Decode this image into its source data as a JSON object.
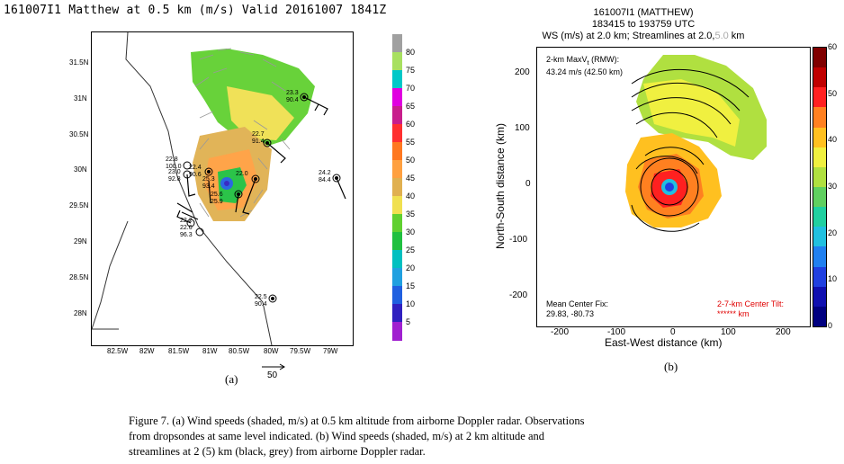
{
  "panel_a": {
    "title": "161007I1 Matthew at 0.5 km (m/s) Valid 20161007 1841Z",
    "label": "(a)",
    "ref_vector": "50",
    "xticks": [
      "82.5W",
      "82W",
      "81.5W",
      "81W",
      "80.5W",
      "80W",
      "79.5W",
      "79W"
    ],
    "yticks": [
      "31.5N",
      "31N",
      "30.5N",
      "30N",
      "29.5N",
      "29N",
      "28.5N",
      "28N"
    ],
    "colorbar": {
      "levels": [
        "80",
        "75",
        "70",
        "65",
        "60",
        "55",
        "50",
        "45",
        "40",
        "35",
        "30",
        "25",
        "20",
        "15",
        "10",
        "5"
      ],
      "colors": [
        "#a0a0a0",
        "#a8e060",
        "#00c8c8",
        "#e000e0",
        "#c81e8c",
        "#ff3030",
        "#ff7820",
        "#ffa040",
        "#e0b050",
        "#f0e050",
        "#60d030",
        "#20c040",
        "#00c0c0",
        "#20a0e0",
        "#2060e0",
        "#3020c0",
        "#a020d0"
      ]
    },
    "dropsondes": [
      {
        "lines": [
          "23.3",
          "90.4"
        ]
      },
      {
        "lines": [
          "22.7",
          "91.4"
        ]
      },
      {
        "lines": [
          "22.8",
          "100.0"
        ]
      },
      {
        "lines": [
          "23.0",
          "92.8"
        ]
      },
      {
        "lines": [
          "22.4",
          "90.6"
        ]
      },
      {
        "lines": [
          "22.0"
        ]
      },
      {
        "lines": [
          "25.3",
          "93.4"
        ]
      },
      {
        "lines": [
          "25.6"
        ]
      },
      {
        "lines": [
          "25.9"
        ]
      },
      {
        "lines": [
          "24.2",
          "84.4"
        ]
      },
      {
        "lines": [
          "22.6",
          "96.3"
        ]
      },
      {
        "lines": [
          "22.2"
        ]
      },
      {
        "lines": [
          "22.5",
          "90.4"
        ]
      }
    ]
  },
  "panel_b": {
    "title_line1": "161007I1 (MATTHEW)",
    "title_line2": "183415 to 193759 UTC",
    "title_line3_main": "WS (m/s) at 2.0 km; Streamlines at 2.0,",
    "title_line3_grey": "5.0",
    "title_line3_end": " km",
    "label": "(b)",
    "xlabel": "East-West distance (km)",
    "ylabel": "North-South distance (km)",
    "xticks": [
      "-200",
      "-100",
      "0",
      "100",
      "200"
    ],
    "yticks": [
      "200",
      "100",
      "0",
      "-100",
      "-200"
    ],
    "max_text_line1": "2-km MaxV",
    "max_text_sub": "t",
    "max_text_suffix": " (RMW):",
    "max_text_line2": "43.24 m/s (42.50 km)",
    "center_fix_line1": "Mean Center Fix:",
    "center_fix_line2": "29.83, -80.73",
    "tilt_line1": "2-7-km Center Tilt:",
    "tilt_line2": "****** km",
    "colorbar": {
      "levels": [
        "60",
        "50",
        "40",
        "30",
        "20",
        "10",
        "0"
      ],
      "colors": [
        "#800000",
        "#c00000",
        "#ff2020",
        "#ff8020",
        "#ffc020",
        "#f0f040",
        "#b0e040",
        "#60d060",
        "#20d0a0",
        "#20c0e0",
        "#2080f0",
        "#2040e0",
        "#1010b0",
        "#000080"
      ]
    }
  },
  "caption": {
    "line1": "Figure  7. (a) Wind speeds (shaded, m/s) at 0.5 km altitude  from airborne Doppler radar.  Observations",
    "line2": "from dropsondes at same level indicated.  (b) Wind speeds (shaded, m/s) at 2 km altitude  and",
    "line3": "streamlines  at 2 (5) km (black, grey) from airborne Doppler radar."
  },
  "chart_data": [
    {
      "type": "heatmap",
      "title": "161007I1 Matthew at 0.5 km (m/s) Valid 20161007 1841Z",
      "xlim": [
        -82.9,
        -78.6
      ],
      "ylim": [
        27.6,
        32.0
      ],
      "colorbar_range": [
        0,
        85
      ],
      "dropsonde_values": [
        {
          "wind": 23.3,
          "rh": 90.4,
          "lon": -79.6,
          "lat": 30.98
        },
        {
          "wind": 22.7,
          "rh": 91.4,
          "lon": -79.9,
          "lat": 30.45
        },
        {
          "wind": 22.8,
          "rh": 100.0,
          "lon": -81.25,
          "lat": 30.05
        },
        {
          "wind": 23.0,
          "rh": 92.8,
          "lon": -81.25,
          "lat": 29.93
        },
        {
          "wind": 22.4,
          "rh": 90.6,
          "lon": -80.95,
          "lat": 29.97
        },
        {
          "wind": 24.2,
          "rh": 84.4,
          "lon": -79.0,
          "lat": 29.9
        },
        {
          "wind": 22.6,
          "rh": 96.3,
          "lon": -81.1,
          "lat": 29.15
        },
        {
          "wind": 22.5,
          "rh": 90.4,
          "lon": -80.1,
          "lat": 28.2
        }
      ]
    },
    {
      "type": "heatmap",
      "title": "WS (m/s) at 2.0 km; Streamlines at 2.0,5.0 km",
      "xlabel": "East-West distance (km)",
      "ylabel": "North-South distance (km)",
      "xlim": [
        -250,
        250
      ],
      "ylim": [
        -250,
        250
      ],
      "colorbar_range": [
        0,
        60
      ],
      "max_wind_ms": 43.24,
      "rmw_km": 42.5,
      "center_fix": [
        29.83,
        -80.73
      ]
    }
  ]
}
